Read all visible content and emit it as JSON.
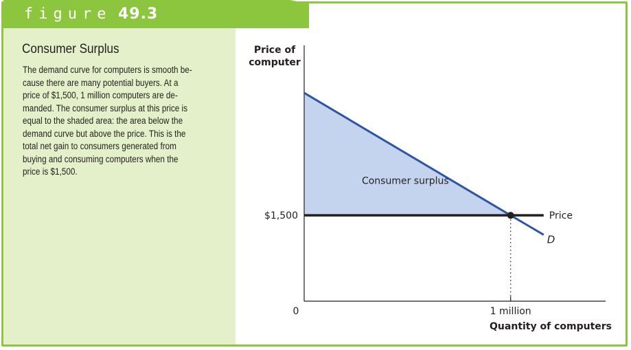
{
  "figure": {
    "word": "figure",
    "number": "49.3"
  },
  "caption": {
    "title": "Consumer Surplus",
    "lines": [
      "The demand curve for computers is smooth be-",
      "cause there are many potential buyers. At a",
      "price of $1,500, 1 million computers are de-",
      "manded. The consumer surplus at this price is",
      "equal to the shaded area: the area below the",
      "demand curve but above the price. This is the",
      "total net gain to consumers generated from",
      "buying and consuming computers when the",
      "price is $1,500."
    ]
  },
  "colors": {
    "accent_green": "#8cc63f",
    "panel_green": "#e4f0c9",
    "demand_blue": "#2e55a5",
    "surplus_fill": "#c5d4ee"
  },
  "chart_data": {
    "type": "line",
    "xlabel": "Quantity of computers",
    "ylabel_lines": [
      "Price of",
      "computer"
    ],
    "origin_label": "0",
    "x_tick_labels": [
      "1 million"
    ],
    "y_tick_labels": [
      "$1,500"
    ],
    "price": 1500,
    "quantity_at_price": 1,
    "demand_curve": {
      "label": "D",
      "points": [
        {
          "x": 0,
          "y": 3640
        },
        {
          "x": 1,
          "y": 1500
        },
        {
          "x": 1.16,
          "y": 1160
        }
      ]
    },
    "price_line": {
      "label": "Price",
      "y": 1500,
      "x_start": 0,
      "x_end": 1.16
    },
    "shaded_area_label": "Consumer surplus",
    "xlim": [
      0,
      1.46
    ],
    "ylim": [
      0,
      4470
    ],
    "grid": false
  }
}
